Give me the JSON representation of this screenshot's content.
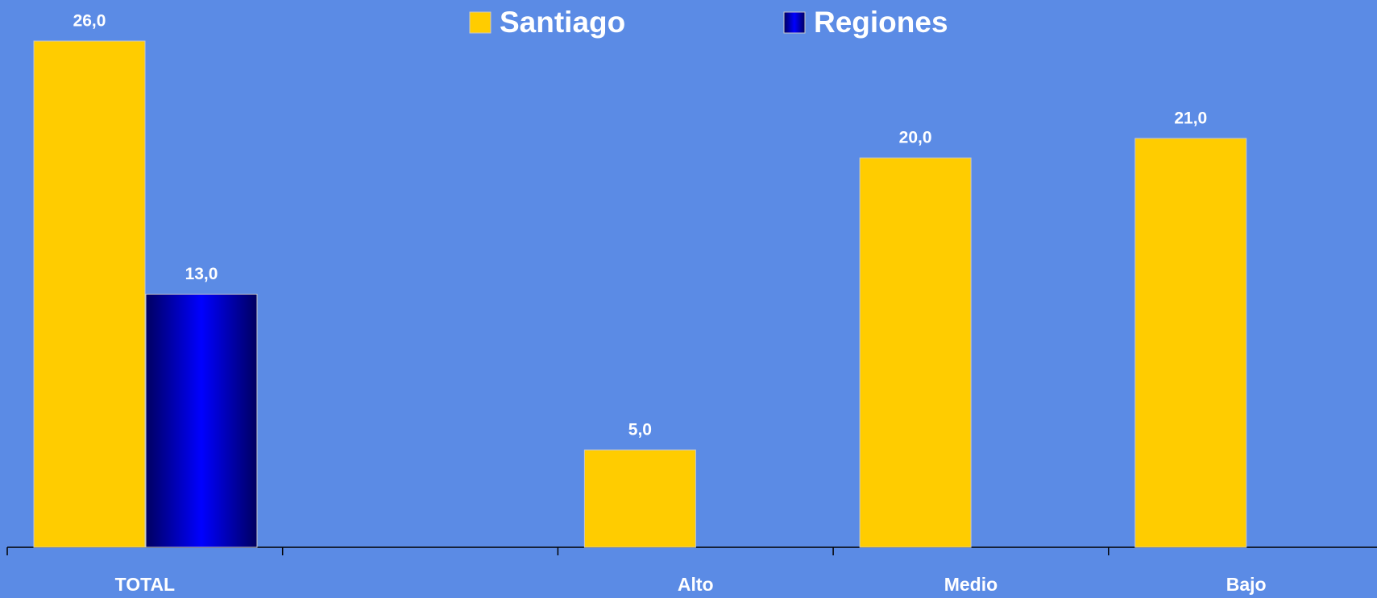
{
  "chart_data": {
    "type": "bar",
    "categories": [
      "TOTAL",
      null,
      "Alto",
      "Medio",
      "Bajo"
    ],
    "series": [
      {
        "name": "Santiago",
        "color": "#ffcc00",
        "values": [
          26,
          null,
          5,
          20,
          21
        ],
        "value_labels": [
          "26,0",
          null,
          "5,0",
          "20,0",
          "21,0"
        ]
      },
      {
        "name": "Regiones",
        "color": "#0000ff",
        "values": [
          13,
          null,
          null,
          null,
          null
        ],
        "value_labels": [
          "13,0",
          null,
          null,
          null,
          null
        ]
      }
    ],
    "legend": "top",
    "grid": false
  }
}
